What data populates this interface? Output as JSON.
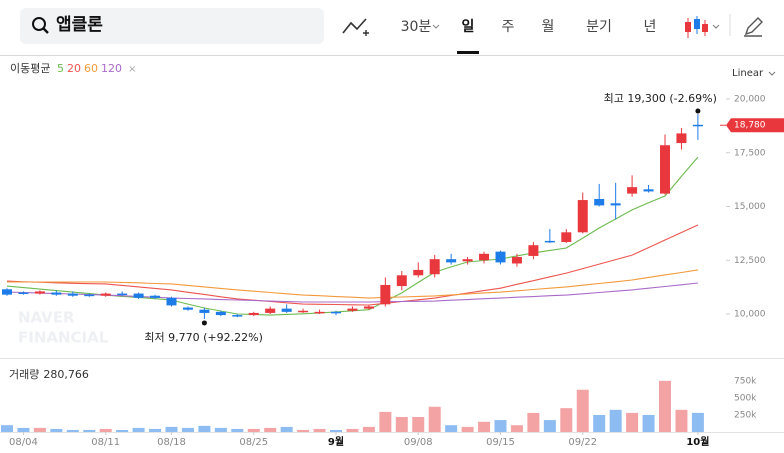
{
  "toolbar": {
    "search": "앱클론",
    "periods": [
      "30분",
      "일",
      "주",
      "월",
      "분기",
      "년"
    ],
    "selected": "일"
  },
  "chart_data": {
    "type": "candlestick",
    "scale_label": "Linear",
    "legend_title": "이동평균",
    "categories": [
      null,
      "08/04",
      null,
      null,
      null,
      null,
      "08/11",
      null,
      null,
      null,
      "08/18",
      null,
      null,
      null,
      null,
      "08/25",
      null,
      null,
      null,
      null,
      "9월",
      null,
      null,
      null,
      null,
      "09/08",
      null,
      null,
      null,
      null,
      "09/15",
      null,
      null,
      null,
      null,
      "09/22",
      null,
      null,
      null,
      null,
      null,
      null,
      "10월"
    ],
    "open": [
      11150,
      11000,
      10950,
      11000,
      10950,
      10900,
      10850,
      10950,
      10950,
      10850,
      10750,
      10300,
      10200,
      10100,
      9950,
      9950,
      10050,
      10250,
      10100,
      10050,
      10100,
      10150,
      10250,
      10450,
      11300,
      11800,
      11850,
      12550,
      12450,
      12500,
      12900,
      12350,
      12700,
      13400,
      13350,
      13800,
      15350,
      15150,
      15600,
      15800,
      15600,
      17950,
      18800
    ],
    "high": [
      11200,
      11050,
      11100,
      11100,
      11050,
      10950,
      11000,
      11050,
      11000,
      10900,
      10800,
      10350,
      10300,
      10150,
      10000,
      10100,
      10350,
      10450,
      10250,
      10200,
      10150,
      10350,
      10400,
      11700,
      12000,
      12400,
      12750,
      12800,
      12650,
      12900,
      12950,
      12800,
      13350,
      13950,
      13950,
      15650,
      16050,
      16100,
      16450,
      16000,
      18350,
      18650,
      19300
    ],
    "low": [
      10850,
      10900,
      10900,
      10850,
      10800,
      10800,
      10800,
      10850,
      10700,
      10700,
      10350,
      10150,
      9770,
      9900,
      9850,
      9900,
      10000,
      10050,
      10050,
      10000,
      9950,
      10100,
      10200,
      10350,
      11100,
      11700,
      11700,
      12300,
      12300,
      12350,
      12300,
      12200,
      12550,
      13300,
      13300,
      13750,
      15000,
      14400,
      15450,
      15650,
      15550,
      17650,
      18100
    ],
    "close": [
      10900,
      10950,
      11050,
      10900,
      10850,
      10850,
      10950,
      10900,
      10750,
      10750,
      10400,
      10200,
      10050,
      9950,
      9900,
      10050,
      10250,
      10100,
      10150,
      10100,
      10050,
      10250,
      10350,
      11350,
      11800,
      12050,
      12550,
      12400,
      12550,
      12800,
      12400,
      12650,
      13200,
      13350,
      13800,
      15300,
      15050,
      15050,
      15900,
      15700,
      17850,
      18400,
      18780
    ],
    "up_color": "#e8383d",
    "down_color": "#1e7ce8",
    "series": [
      {
        "name": "5",
        "color": "#6dbb4f",
        "values": [
          11300,
          11230,
          11160,
          11090,
          11020,
          10950,
          10880,
          10820,
          10770,
          10710,
          10650,
          10460,
          10280,
          10140,
          10000,
          9980,
          9950,
          9980,
          10010,
          10050,
          10100,
          10150,
          10200,
          10590,
          10980,
          11470,
          11950,
          12190,
          12420,
          12490,
          12560,
          12700,
          12840,
          12960,
          13070,
          13530,
          14000,
          14420,
          14840,
          15170,
          15490,
          16400,
          17300
        ]
      },
      {
        "name": "20",
        "color": "#ec5550",
        "values": [
          11530,
          11500,
          11480,
          11450,
          11430,
          11410,
          11400,
          11330,
          11260,
          11190,
          11120,
          11010,
          10910,
          10800,
          10700,
          10640,
          10580,
          10520,
          10460,
          10450,
          10440,
          10430,
          10420,
          10500,
          10580,
          10660,
          10740,
          10860,
          10970,
          11090,
          11200,
          11380,
          11550,
          11730,
          11900,
          12110,
          12320,
          12530,
          12740,
          13090,
          13440,
          13790,
          14140
        ]
      },
      {
        "name": "60",
        "color": "#f29a3c",
        "values": [
          11490,
          11490,
          11490,
          11490,
          11490,
          11490,
          11490,
          11470,
          11450,
          11420,
          11400,
          11330,
          11260,
          11190,
          11120,
          11060,
          11000,
          10940,
          10880,
          10850,
          10810,
          10780,
          10740,
          10770,
          10790,
          10820,
          10840,
          10890,
          10930,
          10980,
          11020,
          11080,
          11140,
          11200,
          11260,
          11340,
          11420,
          11500,
          11580,
          11700,
          11820,
          11930,
          12050
        ]
      },
      {
        "name": "120",
        "color": "#a96bcb",
        "values": [
          11020,
          11000,
          10970,
          10950,
          10930,
          10900,
          10880,
          10850,
          10810,
          10780,
          10740,
          10720,
          10700,
          10670,
          10650,
          10630,
          10600,
          10580,
          10560,
          10560,
          10560,
          10560,
          10560,
          10570,
          10580,
          10590,
          10600,
          10640,
          10670,
          10710,
          10740,
          10780,
          10810,
          10850,
          10880,
          10940,
          11000,
          11060,
          11120,
          11200,
          11280,
          11360,
          11440
        ]
      }
    ],
    "ylim": [
      8000,
      22000
    ],
    "yticks": [
      {
        "value": 10000,
        "label": "10,000"
      },
      {
        "value": 12500,
        "label": "12,500"
      },
      {
        "value": 15000,
        "label": "15,000"
      },
      {
        "value": 17500,
        "label": "17,500"
      },
      {
        "value": 20000,
        "label": "20,000"
      }
    ],
    "last_price_label": "18,780",
    "max_label": "최고 19,300 (-2.69%)",
    "min_label": "최저 9,770 (+92.22%)",
    "volume": {
      "name": "거래량",
      "last_label": "280,766",
      "up_color": "#f4a3a5",
      "down_color": "#8dbcf2",
      "values": [
        100000,
        60000,
        60000,
        45000,
        30000,
        30000,
        45000,
        30000,
        60000,
        45000,
        75000,
        60000,
        90000,
        60000,
        45000,
        45000,
        60000,
        75000,
        30000,
        45000,
        30000,
        45000,
        75000,
        295000,
        220000,
        220000,
        370000,
        100000,
        75000,
        150000,
        175000,
        100000,
        280000,
        175000,
        350000,
        620000,
        250000,
        325000,
        280000,
        250000,
        750000,
        325000,
        280766
      ],
      "ylim": [
        0,
        1100000
      ],
      "yticks": [
        {
          "value": 250000,
          "label": "250k"
        },
        {
          "value": 500000,
          "label": "500k"
        },
        {
          "value": 750000,
          "label": "750k"
        }
      ]
    }
  }
}
